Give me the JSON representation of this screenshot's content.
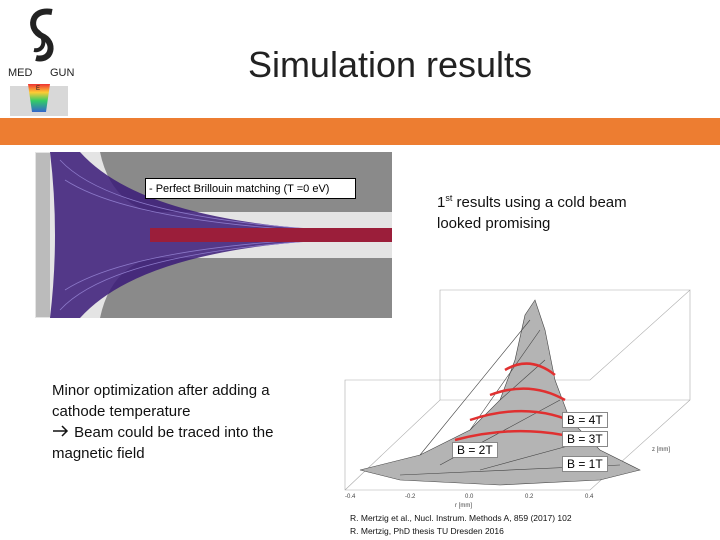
{
  "logo": {
    "left": "MED",
    "right": "GUN",
    "small": "E"
  },
  "title": "Simulation results",
  "simulation": {
    "caption": "- Perfect Brillouin matching (T =0 eV)"
  },
  "cold_beam": {
    "number": "1",
    "suffix": "st",
    "text": "results using a cold beam looked promising"
  },
  "optimization": {
    "lines": [
      "Minor optimization after adding a cathode temperature",
      "Beam could be traced into the magnetic field"
    ]
  },
  "plot": {
    "field_labels": [
      "B = 4T",
      "B = 3T",
      "B = 2T",
      "B = 1T"
    ],
    "x_ticks": [
      "-0.4",
      "-0.2",
      "0.0",
      "0.2",
      "0.4"
    ],
    "x_label": "r [mm]",
    "z_label": "z [mm]"
  },
  "references": [
    "R. Mertzig et al., Nucl. Instrum. Methods A, 859 (2017) 102",
    "R. Mertzig, PhD thesis TU Dresden 2016"
  ]
}
